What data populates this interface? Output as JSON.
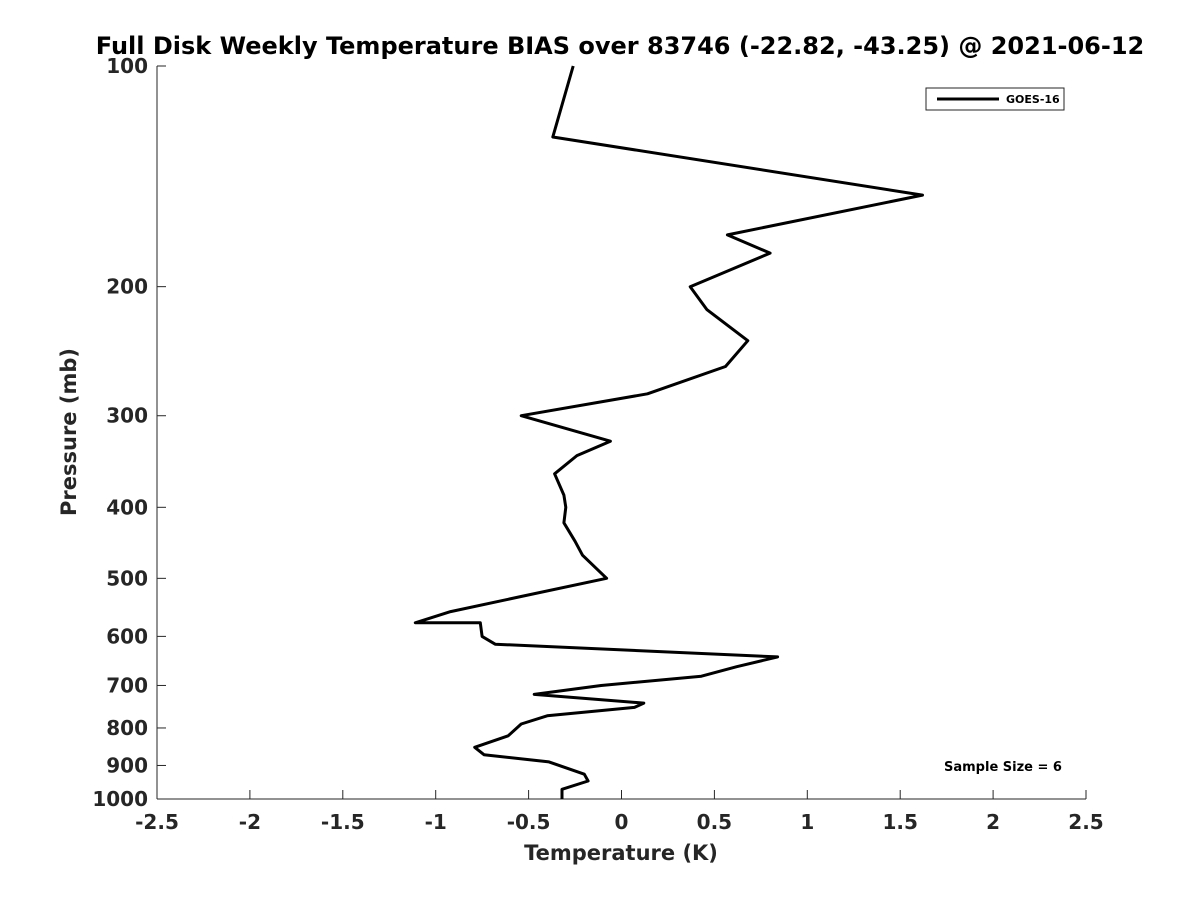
{
  "chart_data": {
    "type": "line",
    "title": "Full Disk Weekly Temperature BIAS over 83746 (-22.82, -43.25) @ 2021-06-12",
    "xlabel": "Temperature (K)",
    "ylabel": "Pressure (mb)",
    "xlim": [
      -2.5,
      2.5
    ],
    "ylim": [
      1000,
      100
    ],
    "y_scale": "log",
    "y_reversed": true,
    "x_ticks": [
      -2.5,
      -2,
      -1.5,
      -1,
      -0.5,
      0,
      0.5,
      1,
      1.5,
      2,
      2.5
    ],
    "x_tick_labels": [
      "-2.5",
      "-2",
      "-1.5",
      "-1",
      "-0.5",
      "0",
      "0.5",
      "1",
      "1.5",
      "2",
      "2.5"
    ],
    "y_ticks": [
      100,
      200,
      300,
      400,
      500,
      600,
      700,
      800,
      900,
      1000
    ],
    "y_tick_labels": [
      "100",
      "200",
      "300",
      "400",
      "500",
      "600",
      "700",
      "800",
      "900",
      "1000"
    ],
    "grid": false,
    "legend_position": "top-right",
    "annotation": "Sample Size = 6",
    "colors": {
      "line": "#000000",
      "axis": "#262626",
      "background": "#ffffff"
    },
    "series": [
      {
        "name": "GOES-16",
        "x": [
          -0.26,
          -0.37,
          1.62,
          0.57,
          0.8,
          0.37,
          0.46,
          0.68,
          0.56,
          0.14,
          -0.54,
          -0.06,
          -0.24,
          -0.36,
          -0.31,
          -0.3,
          -0.31,
          -0.25,
          -0.21,
          -0.08,
          -0.55,
          -0.92,
          -1.11,
          -0.76,
          -0.75,
          -0.68,
          0.84,
          0.62,
          0.43,
          -0.11,
          -0.47,
          0.12,
          0.07,
          -0.4,
          -0.54,
          -0.61,
          -0.79,
          -0.74,
          -0.39,
          -0.2,
          -0.18,
          -0.32,
          -0.32
        ],
        "y": [
          100,
          125,
          150,
          170,
          180,
          200,
          215,
          237,
          257,
          280,
          300,
          325,
          340,
          360,
          385,
          400,
          420,
          445,
          465,
          500,
          530,
          555,
          575,
          575,
          600,
          615,
          640,
          660,
          680,
          700,
          720,
          740,
          750,
          770,
          790,
          820,
          850,
          870,
          890,
          925,
          945,
          970,
          1000
        ]
      }
    ]
  }
}
